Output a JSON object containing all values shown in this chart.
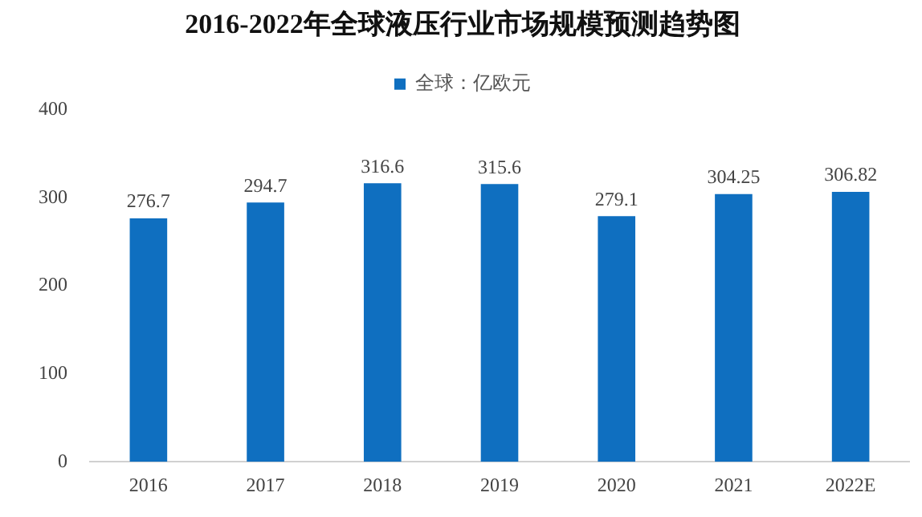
{
  "chart_data": {
    "type": "bar",
    "title": "2016-2022年全球液压行业市场规模预测趋势图",
    "categories": [
      "2016",
      "2017",
      "2018",
      "2019",
      "2020",
      "2021",
      "2022E"
    ],
    "series": [
      {
        "name": "全球：亿欧元",
        "color": "#0f6fc0",
        "values": [
          276.7,
          294.7,
          316.6,
          315.6,
          279.1,
          304.25,
          306.82
        ]
      }
    ],
    "ylim": [
      0,
      400
    ],
    "yticks": [
      0,
      100,
      200,
      300,
      400
    ],
    "grid": false,
    "legend": "top",
    "data_labels": true
  }
}
